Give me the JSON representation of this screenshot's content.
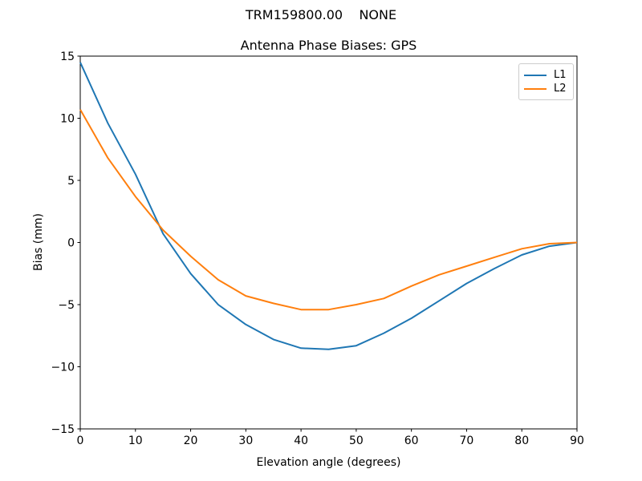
{
  "header": {
    "suptitle": "TRM159800.00    NONE"
  },
  "chart_data": {
    "type": "line",
    "suptitle": "TRM159800.00    NONE",
    "title": "Antenna Phase Biases: GPS",
    "xlabel": "Elevation angle (degrees)",
    "ylabel": "Bias (mm)",
    "xlim": [
      0,
      90
    ],
    "ylim": [
      -15,
      15
    ],
    "xticks": [
      0,
      10,
      20,
      30,
      40,
      50,
      60,
      70,
      80,
      90
    ],
    "yticks": [
      -15,
      -10,
      -5,
      0,
      5,
      10,
      15
    ],
    "grid": false,
    "legend_position": "upper right",
    "x": [
      0,
      5,
      10,
      15,
      20,
      25,
      30,
      35,
      40,
      45,
      50,
      55,
      60,
      65,
      70,
      75,
      80,
      85,
      90
    ],
    "series": [
      {
        "name": "L1",
        "color": "#1f77b4",
        "values": [
          14.5,
          9.6,
          5.5,
          0.7,
          -2.5,
          -5.0,
          -6.6,
          -7.8,
          -8.5,
          -8.6,
          -8.3,
          -7.3,
          -6.1,
          -4.7,
          -3.3,
          -2.1,
          -1.0,
          -0.3,
          0.0
        ]
      },
      {
        "name": "L2",
        "color": "#ff7f0e",
        "values": [
          10.7,
          6.8,
          3.7,
          1.0,
          -1.1,
          -3.0,
          -4.3,
          -4.9,
          -5.4,
          -5.4,
          -5.0,
          -4.5,
          -3.5,
          -2.6,
          -1.9,
          -1.2,
          -0.5,
          -0.1,
          0.0
        ]
      }
    ]
  }
}
